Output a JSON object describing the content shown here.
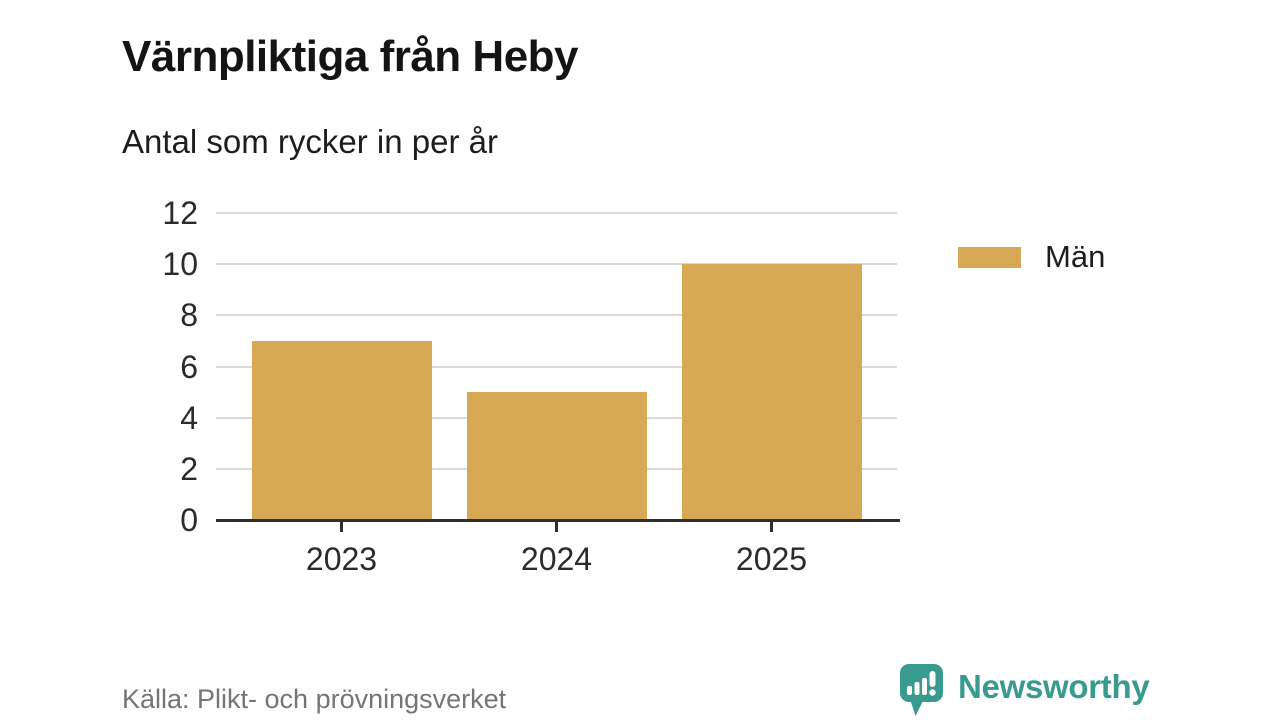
{
  "title": "Värnpliktiga från Heby",
  "subtitle": "Antal som rycker in per år",
  "source": "Källa: Plikt- och prövningsverket",
  "brand": {
    "name": "Newsworthy",
    "color": "#399a90"
  },
  "chart_data": {
    "type": "bar",
    "title": "Värnpliktiga från Heby",
    "subtitle": "Antal som rycker in per år",
    "categories": [
      "2023",
      "2024",
      "2025"
    ],
    "series": [
      {
        "name": "Män",
        "color": "#d8a954",
        "values": [
          7,
          5,
          10
        ]
      }
    ],
    "xlabel": "",
    "ylabel": "",
    "ylim": [
      0,
      12
    ],
    "yticks": [
      0,
      2,
      4,
      6,
      8,
      10,
      12
    ],
    "grid": true,
    "legend_position": "right",
    "source": "Källa: Plikt- och prövningsverket"
  }
}
